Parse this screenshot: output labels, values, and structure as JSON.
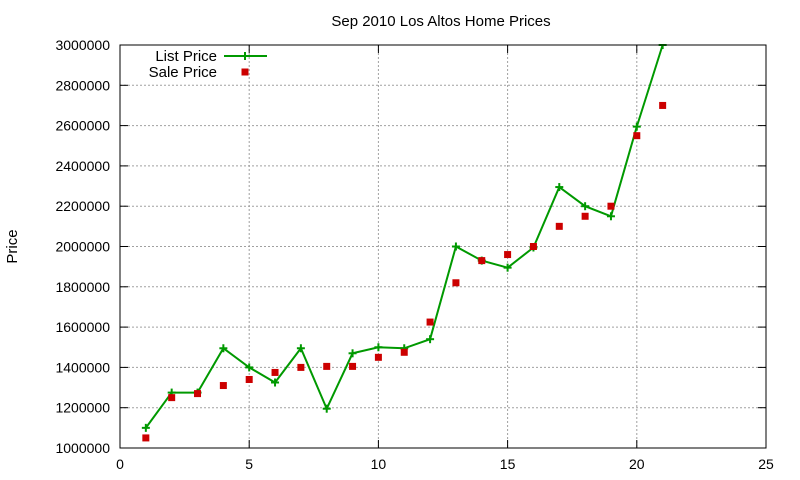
{
  "chart_data": {
    "type": "line",
    "title": "Sep 2010 Los Altos Home Prices",
    "xlabel": "",
    "ylabel": "Price",
    "xlim": [
      0,
      25
    ],
    "ylim": [
      1000000,
      3000000
    ],
    "x_ticks": [
      0,
      5,
      10,
      15,
      20,
      25
    ],
    "y_ticks": [
      1000000,
      1200000,
      1400000,
      1600000,
      1800000,
      2000000,
      2200000,
      2400000,
      2600000,
      2800000,
      3000000
    ],
    "grid": true,
    "legend_position": "top-left",
    "series": [
      {
        "name": "List Price",
        "style": "line+plus",
        "color": "#009900",
        "x": [
          1,
          2,
          3,
          4,
          5,
          6,
          7,
          8,
          9,
          10,
          11,
          12,
          13,
          14,
          15,
          16,
          17,
          18,
          19,
          20,
          21
        ],
        "values": [
          1100000,
          1275000,
          1275000,
          1495000,
          1400000,
          1325000,
          1495000,
          1195000,
          1470000,
          1500000,
          1495000,
          1540000,
          2000000,
          1930000,
          1895000,
          1995000,
          2295000,
          2200000,
          2150000,
          2595000,
          3000000
        ]
      },
      {
        "name": "Sale Price",
        "style": "square-marker",
        "color": "#cc0000",
        "x": [
          1,
          2,
          3,
          4,
          5,
          6,
          7,
          8,
          9,
          10,
          11,
          12,
          13,
          14,
          15,
          16,
          17,
          18,
          19,
          20,
          21
        ],
        "values": [
          1050000,
          1250000,
          1270000,
          1310000,
          1340000,
          1375000,
          1400000,
          1405000,
          1405000,
          1450000,
          1475000,
          1625000,
          1820000,
          1930000,
          1960000,
          2000000,
          2100000,
          2150000,
          2200000,
          2550000,
          2700000
        ]
      }
    ]
  }
}
